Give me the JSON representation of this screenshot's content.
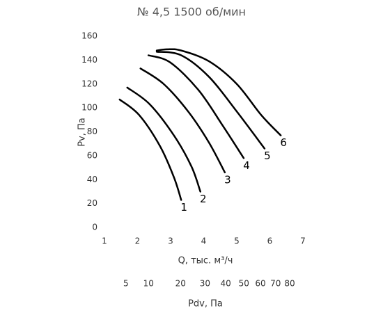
{
  "chart_data": {
    "type": "line",
    "title": "№ 4,5 1500 об/мин",
    "x_label": "Q, тыс. м³/ч",
    "y_label": "Pv, Па",
    "x2_label": "Pdv, Па",
    "xlim": [
      1,
      7
    ],
    "xticks": [
      1,
      2,
      3,
      4,
      5,
      6,
      7
    ],
    "ylim": [
      0,
      160
    ],
    "yticks": [
      0,
      20,
      40,
      60,
      80,
      100,
      120,
      140,
      160
    ],
    "x2scale": "sqrt",
    "x2lim": [
      1.84,
      90
    ],
    "x2ticks": [
      5,
      10,
      20,
      30,
      40,
      50,
      60,
      70,
      80
    ],
    "grid": false,
    "series": [
      {
        "name": "1",
        "color": "#000000",
        "x": [
          1.46,
          2.05,
          2.68,
          3.1,
          3.32
        ],
        "values": [
          107,
          94,
          68,
          42,
          23
        ]
      },
      {
        "name": "2",
        "color": "#000000",
        "x": [
          1.69,
          2.37,
          3.1,
          3.63,
          3.9
        ],
        "values": [
          117,
          103,
          77,
          51,
          30
        ]
      },
      {
        "name": "3",
        "color": "#000000",
        "x": [
          2.09,
          2.79,
          3.53,
          4.16,
          4.64
        ],
        "values": [
          133,
          120,
          97,
          71,
          46
        ]
      },
      {
        "name": "4",
        "color": "#000000",
        "x": [
          2.33,
          2.99,
          3.84,
          4.58,
          5.21
        ],
        "values": [
          144,
          138,
          115,
          85,
          58
        ]
      },
      {
        "name": "5",
        "color": "#000000",
        "x": [
          2.58,
          3.32,
          4.16,
          5.0,
          5.84
        ],
        "values": [
          147,
          144,
          126,
          97,
          66
        ]
      },
      {
        "name": "6",
        "color": "#000000",
        "x": [
          2.58,
          2.89,
          3.32,
          4.16,
          5.0,
          5.74,
          6.33
        ],
        "values": [
          148,
          149,
          148,
          139,
          120,
          94,
          77
        ]
      }
    ]
  }
}
